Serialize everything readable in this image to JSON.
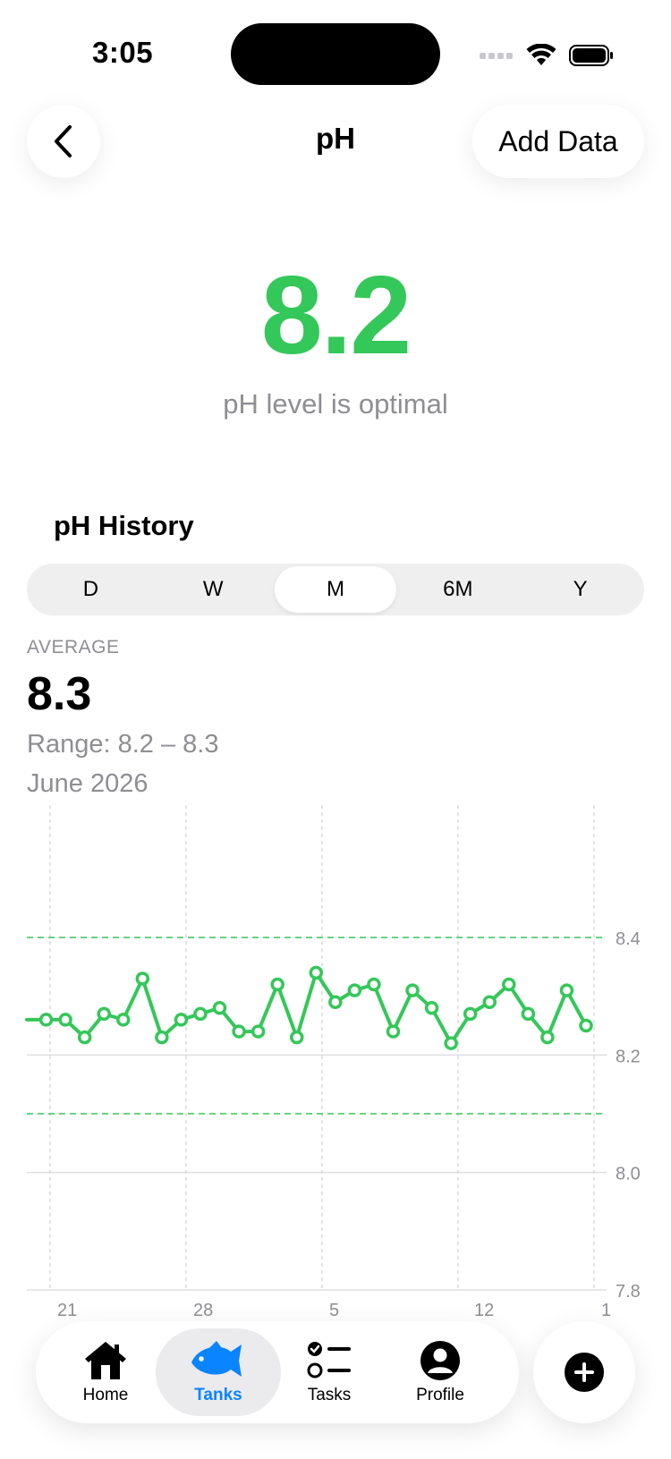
{
  "status_bar": {
    "time": "3:05"
  },
  "nav": {
    "title": "pH",
    "add_label": "Add Data"
  },
  "reading": {
    "value": "8.2",
    "message": "pH level is optimal",
    "color": "#34C759"
  },
  "history": {
    "title": "pH History",
    "segments": [
      "D",
      "W",
      "M",
      "6M",
      "Y"
    ],
    "selected": "M",
    "average_label": "AVERAGE",
    "average_value": "8.3",
    "range": "Range: 8.2 – 8.3",
    "period": "June 2026"
  },
  "chart_data": {
    "type": "line",
    "ylim": [
      7.8,
      8.4
    ],
    "yticks": [
      7.8,
      8.0,
      8.2,
      8.4
    ],
    "ytick_labels": [
      "7.8",
      "8.0",
      "8.2",
      "8.4"
    ],
    "xtick_labels": [
      "21",
      "28",
      "5",
      "12",
      "1"
    ],
    "threshold_lines": [
      8.4,
      8.1
    ],
    "line_color": "#34C759",
    "series": [
      {
        "values": [
          8.26,
          8.26,
          8.26,
          8.23,
          8.27,
          8.26,
          8.33,
          8.23,
          8.26,
          8.27,
          8.28,
          8.24,
          8.24,
          8.32,
          8.23,
          8.34,
          8.29,
          8.31,
          8.32,
          8.24,
          8.31,
          8.28,
          8.22,
          8.27,
          8.29,
          8.32,
          8.27,
          8.23,
          8.31,
          8.25
        ]
      }
    ]
  },
  "tabbar": {
    "tabs": [
      {
        "label": "Home",
        "icon": "house-icon"
      },
      {
        "label": "Tanks",
        "icon": "fish-icon"
      },
      {
        "label": "Tasks",
        "icon": "checklist-icon"
      },
      {
        "label": "Profile",
        "icon": "person-circle-icon"
      }
    ],
    "active": "Tanks",
    "active_color": "#0A84FF",
    "fab_icon": "plus-circle-icon"
  }
}
